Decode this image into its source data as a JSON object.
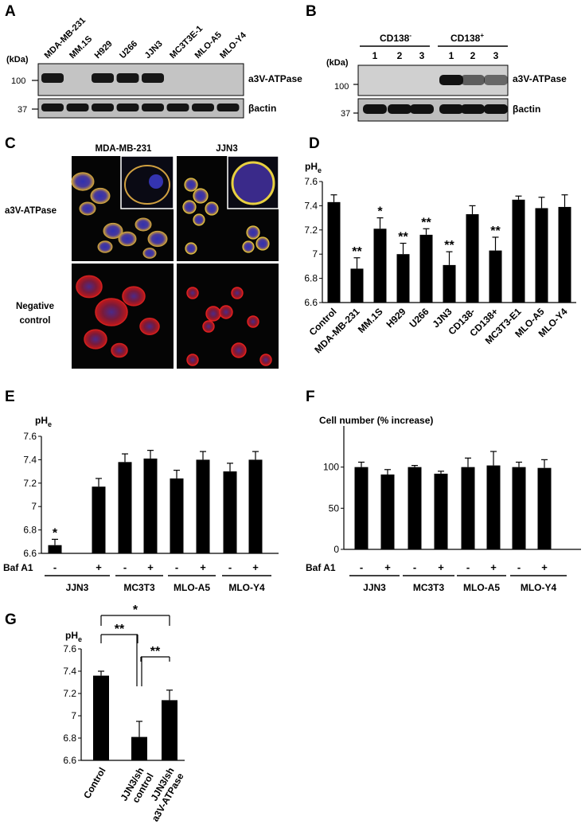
{
  "panelA": {
    "letter": "A",
    "kda": "(kDa)",
    "lanes": [
      "MDA-MB-231",
      "MM.1S",
      "H929",
      "U266",
      "JJN3",
      "MC3T3E-1",
      "MLO-A5",
      "MLO-Y4"
    ],
    "markers": [
      "100",
      "37"
    ],
    "band1": "a3V-ATPase",
    "band2": "βactin"
  },
  "panelB": {
    "letter": "B",
    "kda": "(kDa)",
    "group1": "CD138",
    "group1_sup": "-",
    "group2": "CD138",
    "group2_sup": "+",
    "lanes": [
      "1",
      "2",
      "3",
      "1",
      "2",
      "3"
    ],
    "markers": [
      "100",
      "37"
    ],
    "band1": "a3V-ATPase",
    "band2": "βactin"
  },
  "panelC": {
    "letter": "C",
    "col1": "MDA-MB-231",
    "col2": "JJN3",
    "row1": "a3V-ATPase",
    "row2_line1": "Negative",
    "row2_line2": "control"
  },
  "colors": {
    "bar": "#000000",
    "blot_bg": "#bdbdbd",
    "band": "#111111",
    "micro_bg": "#050505"
  },
  "chart_data": [
    {
      "id": "D",
      "type": "bar",
      "letter": "D",
      "ylabel": "pH",
      "ylabel_sub": "e",
      "ylim": [
        6.6,
        7.6
      ],
      "ticks": [
        "6.6",
        "6.8",
        "7",
        "7.2",
        "7.4",
        "7.6"
      ],
      "categories": [
        "Control",
        "MDA-MB-231",
        "MM.1S",
        "H929",
        "U266",
        "JJN3",
        "CD138-",
        "CD138+",
        "MC3T3-E1",
        "MLO-A5",
        "MLO-Y4"
      ],
      "values": [
        7.43,
        6.88,
        7.21,
        7.0,
        7.16,
        6.91,
        7.33,
        7.03,
        7.45,
        7.38,
        7.39
      ],
      "errors": [
        0.06,
        0.09,
        0.09,
        0.09,
        0.05,
        0.11,
        0.07,
        0.11,
        0.03,
        0.09,
        0.1
      ],
      "marks": [
        "",
        "**",
        "*",
        "**",
        "**",
        "**",
        "",
        "**",
        "",
        "",
        ""
      ]
    },
    {
      "id": "E",
      "type": "bar",
      "letter": "E",
      "ylabel": "pH",
      "ylabel_sub": "e",
      "ylim": [
        6.6,
        7.6
      ],
      "ticks": [
        "6.6",
        "6.8",
        "7",
        "7.2",
        "7.4",
        "7.6"
      ],
      "treatment_label": "Baf A1",
      "treatments": [
        "-",
        "+",
        "-",
        "+",
        "-",
        "+",
        "-",
        "+"
      ],
      "groups": [
        "JJN3",
        "MC3T3",
        "MLO-A5",
        "MLO-Y4"
      ],
      "values": [
        6.67,
        7.17,
        7.38,
        7.41,
        7.24,
        7.4,
        7.3,
        7.4
      ],
      "errors": [
        0.05,
        0.07,
        0.07,
        0.07,
        0.07,
        0.07,
        0.07,
        0.07
      ],
      "marks": [
        "*",
        "",
        "",
        "",
        "",
        "",
        "",
        ""
      ]
    },
    {
      "id": "F",
      "type": "bar",
      "letter": "F",
      "title": "Cell number (% increase)",
      "ylim": [
        0,
        150
      ],
      "ticks": [
        "0",
        "50",
        "100"
      ],
      "treatment_label": "Baf A1",
      "treatments": [
        "-",
        "+",
        "-",
        "+",
        "-",
        "+",
        "-",
        "+"
      ],
      "groups": [
        "JJN3",
        "MC3T3",
        "MLO-A5",
        "MLO-Y4"
      ],
      "values": [
        100,
        91,
        100,
        92,
        100,
        102,
        100,
        99
      ],
      "errors": [
        6,
        6,
        2,
        3,
        11,
        17,
        6,
        10
      ],
      "marks": [
        "",
        "",
        "",
        "",
        "",
        "",
        "",
        ""
      ]
    },
    {
      "id": "G",
      "type": "bar",
      "letter": "G",
      "ylabel": "pH",
      "ylabel_sub": "e",
      "ylim": [
        6.6,
        7.6
      ],
      "ticks": [
        "6.6",
        "6.8",
        "7",
        "7.2",
        "7.4",
        "7.6"
      ],
      "categories": [
        "Control",
        "JJN3/sh control",
        "JJN3/sh a3V-ATPase"
      ],
      "category_lines": [
        [
          "Control"
        ],
        [
          "JJN3/sh",
          "control"
        ],
        [
          "JJN3/sh",
          "a3V-ATPase"
        ]
      ],
      "values": [
        7.36,
        6.81,
        7.14
      ],
      "errors": [
        0.04,
        0.14,
        0.09
      ],
      "brackets": [
        {
          "from": 0,
          "to": 2,
          "mark": "*"
        },
        {
          "from": 0,
          "to": 1,
          "mark": "**"
        },
        {
          "from": 1,
          "to": 2,
          "mark": "**"
        }
      ]
    }
  ]
}
